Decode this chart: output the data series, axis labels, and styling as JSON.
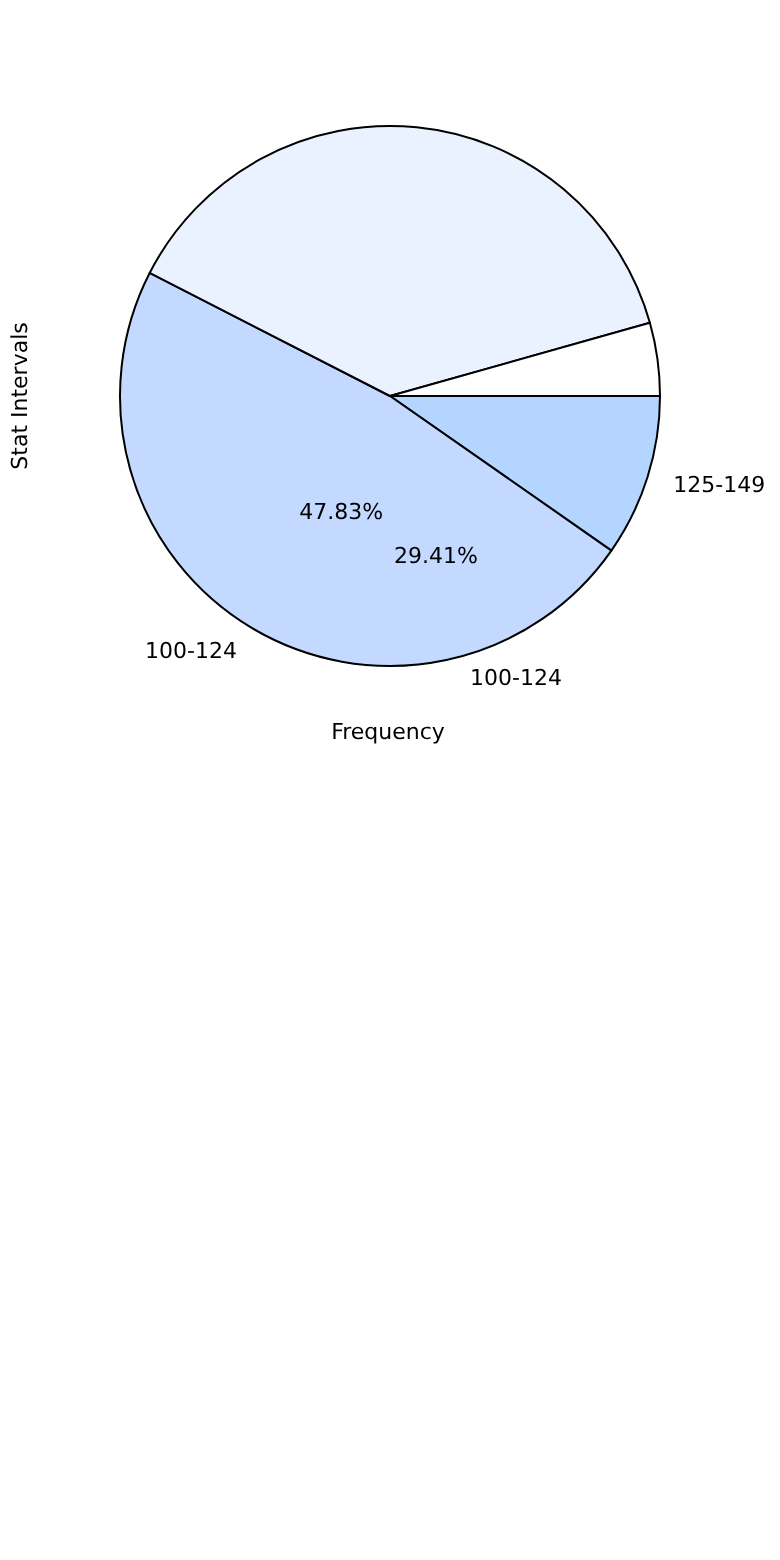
{
  "chart_data": {
    "type": "pie",
    "xlabel": "Frequency",
    "ylabel": "Stat Intervals",
    "categories": [
      "125-149",
      "100-124",
      null,
      null
    ],
    "values": [
      9.7,
      47.83,
      38.1,
      4.37
    ],
    "colors": [
      "#b3d5ff",
      "#c4d9ff",
      "#eaf2ff",
      "#ffffff"
    ],
    "value_labels": [
      null,
      "47.83%",
      null,
      null
    ],
    "annotations": [
      "29.41%",
      "100-124"
    ]
  }
}
